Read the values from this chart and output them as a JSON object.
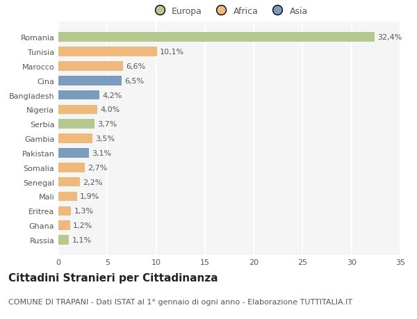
{
  "categories": [
    "Romania",
    "Tunisia",
    "Marocco",
    "Cina",
    "Bangladesh",
    "Nigeria",
    "Serbia",
    "Gambia",
    "Pakistan",
    "Somalia",
    "Senegal",
    "Mali",
    "Eritrea",
    "Ghana",
    "Russia"
  ],
  "values": [
    32.4,
    10.1,
    6.6,
    6.5,
    4.2,
    4.0,
    3.7,
    3.5,
    3.1,
    2.7,
    2.2,
    1.9,
    1.3,
    1.2,
    1.1
  ],
  "labels": [
    "32,4%",
    "10,1%",
    "6,6%",
    "6,5%",
    "4,2%",
    "4,0%",
    "3,7%",
    "3,5%",
    "3,1%",
    "2,7%",
    "2,2%",
    "1,9%",
    "1,3%",
    "1,2%",
    "1,1%"
  ],
  "continents": [
    "Europa",
    "Africa",
    "Africa",
    "Asia",
    "Asia",
    "Africa",
    "Europa",
    "Africa",
    "Asia",
    "Africa",
    "Africa",
    "Africa",
    "Africa",
    "Africa",
    "Europa"
  ],
  "colors": {
    "Europa": "#b5c98e",
    "Africa": "#f0b97c",
    "Asia": "#7a9dbf"
  },
  "xlim": [
    0,
    35
  ],
  "xticks": [
    0,
    5,
    10,
    15,
    20,
    25,
    30,
    35
  ],
  "title": "Cittadini Stranieri per Cittadinanza",
  "subtitle": "COMUNE DI TRAPANI - Dati ISTAT al 1° gennaio di ogni anno - Elaborazione TUTTITALIA.IT",
  "background_color": "#ffffff",
  "plot_background": "#f5f5f5",
  "grid_color": "#ffffff",
  "bar_height": 0.65,
  "label_fontsize": 8,
  "tick_fontsize": 8,
  "title_fontsize": 11,
  "subtitle_fontsize": 8
}
